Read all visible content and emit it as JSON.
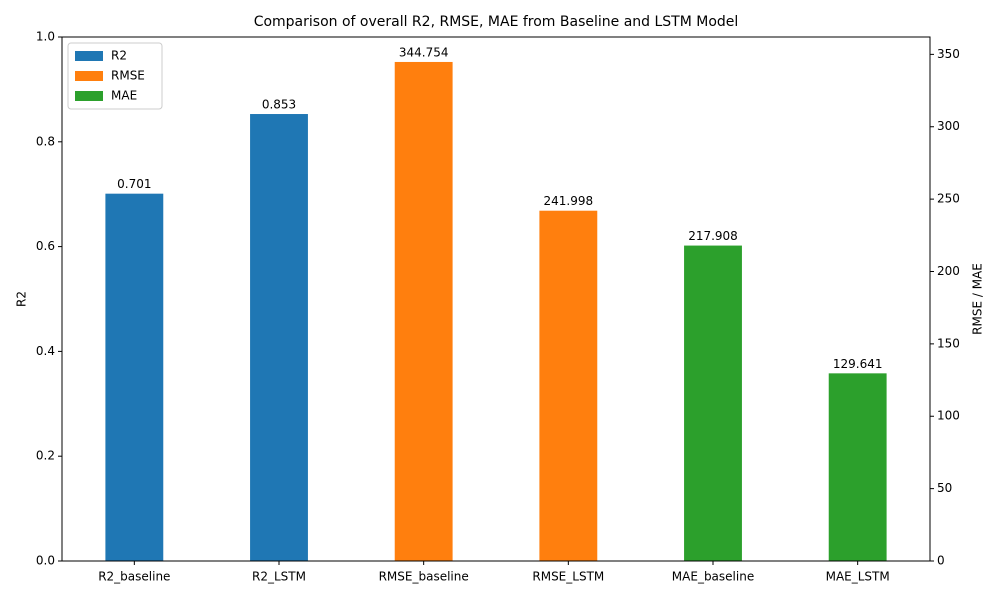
{
  "chart_data": {
    "type": "bar",
    "title": "Comparison of overall R2, RMSE, MAE from Baseline and LSTM Model",
    "y_label": "R2",
    "y2_label": "RMSE / MAE",
    "categories": [
      "R2_baseline",
      "R2_LSTM",
      "RMSE_baseline",
      "RMSE_LSTM",
      "MAE_baseline",
      "MAE_LSTM"
    ],
    "series": [
      {
        "name": "R2",
        "color": "#1f77b4",
        "axis": "y",
        "values": [
          0.701,
          0.853,
          null,
          null,
          null,
          null
        ]
      },
      {
        "name": "RMSE",
        "color": "#ff7f0e",
        "axis": "y2",
        "values": [
          null,
          null,
          344.754,
          241.998,
          null,
          null
        ]
      },
      {
        "name": "MAE",
        "color": "#2ca02c",
        "axis": "y2",
        "values": [
          null,
          null,
          null,
          null,
          217.908,
          129.641
        ]
      }
    ],
    "ylim": [
      0,
      1
    ],
    "yticks": [
      {
        "value": 0,
        "label": "0.0"
      },
      0.2,
      0.4,
      0.6,
      0.8,
      {
        "value": 1,
        "label": "1.0"
      }
    ],
    "y2lim": [
      0,
      362
    ],
    "y2ticks": [
      0,
      50,
      100,
      150,
      200,
      250,
      300,
      350
    ],
    "legend": "upper left"
  }
}
